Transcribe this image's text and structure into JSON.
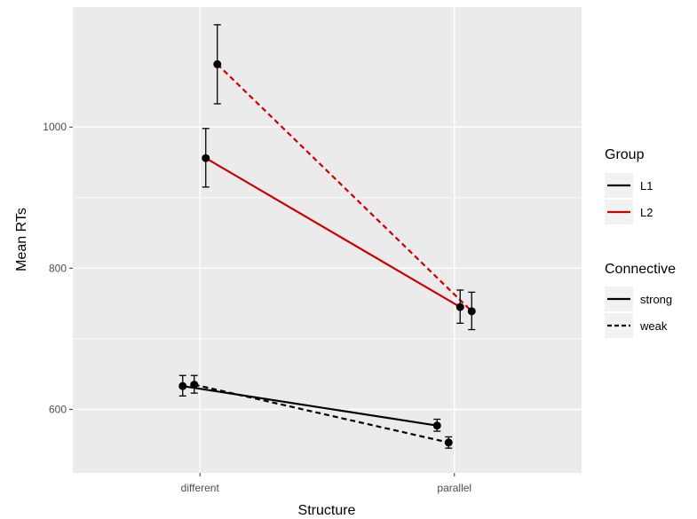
{
  "chart_data": {
    "type": "line",
    "xlabel": "Structure",
    "ylabel": "Mean RTs",
    "categories": [
      "different",
      "parallel"
    ],
    "y_ticks": [
      600,
      800,
      1000
    ],
    "ylim": [
      510,
      1170
    ],
    "grid": true,
    "legend_position": "right",
    "legends": [
      {
        "title": "Group",
        "entries": [
          {
            "label": "L1",
            "color": "#000000",
            "linetype": "solid"
          },
          {
            "label": "L2",
            "color": "#cc0000",
            "linetype": "solid"
          }
        ]
      },
      {
        "title": "Connective",
        "entries": [
          {
            "label": "strong",
            "color": "#000000",
            "linetype": "solid"
          },
          {
            "label": "weak",
            "color": "#000000",
            "linetype": "dashed"
          }
        ]
      }
    ],
    "series": [
      {
        "group": "L1",
        "connective": "strong",
        "color": "#000000",
        "linetype": "solid",
        "values": [
          633,
          577
        ],
        "errors": [
          [
            619,
            648
          ],
          [
            569,
            586
          ]
        ]
      },
      {
        "group": "L1",
        "connective": "weak",
        "color": "#000000",
        "linetype": "dashed",
        "values": [
          635,
          553
        ],
        "errors": [
          [
            623,
            648
          ],
          [
            545,
            561
          ]
        ]
      },
      {
        "group": "L2",
        "connective": "strong",
        "color": "#cc0000",
        "linetype": "solid",
        "values": [
          956,
          745
        ],
        "errors": [
          [
            915,
            998
          ],
          [
            722,
            769
          ]
        ]
      },
      {
        "group": "L2",
        "connective": "weak",
        "color": "#cc0000",
        "linetype": "dashed",
        "values": [
          1089,
          739
        ],
        "errors": [
          [
            1033,
            1145
          ],
          [
            713,
            766
          ]
        ]
      }
    ]
  }
}
